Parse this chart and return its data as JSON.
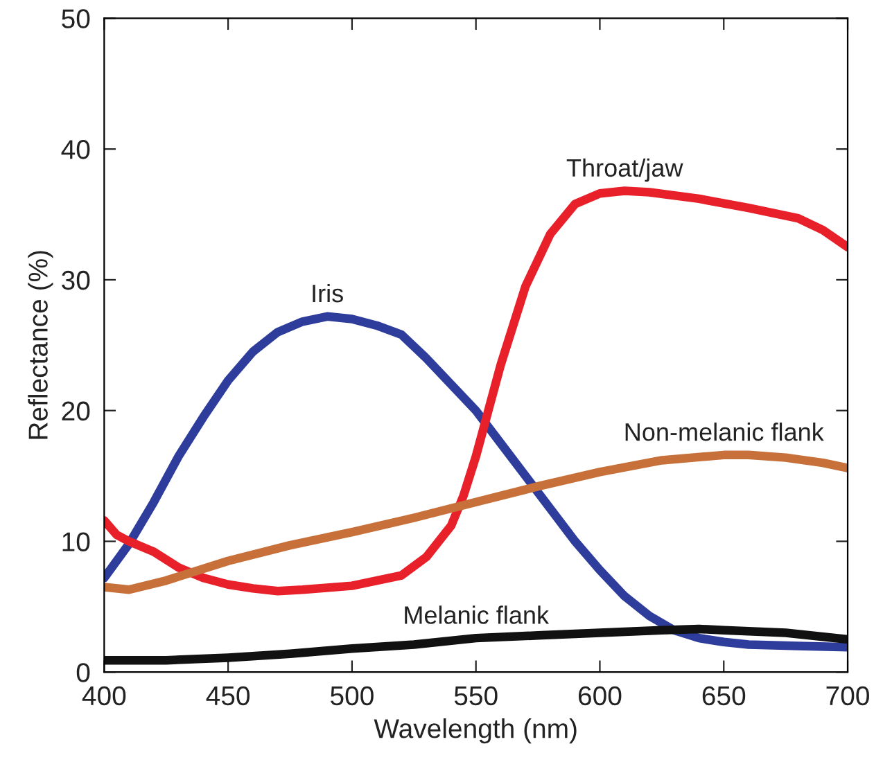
{
  "chart_data": {
    "type": "line",
    "xlabel": "Wavelength (nm)",
    "ylabel": "Reflectance (%)",
    "xlim": [
      400,
      700
    ],
    "ylim": [
      0,
      50
    ],
    "xticks": [
      400,
      450,
      500,
      550,
      600,
      650,
      700
    ],
    "yticks": [
      0,
      10,
      20,
      30,
      40,
      50
    ],
    "grid": false,
    "legend": false,
    "marker": "none",
    "line_style": "solid",
    "series": [
      {
        "name": "Iris",
        "color": "#2e3d9c",
        "x": [
          400,
          410,
          420,
          430,
          440,
          450,
          460,
          470,
          480,
          490,
          500,
          510,
          520,
          530,
          540,
          550,
          560,
          570,
          580,
          590,
          600,
          610,
          620,
          630,
          640,
          650,
          660,
          680,
          700
        ],
        "values": [
          7.2,
          9.8,
          13,
          16.5,
          19.5,
          22.3,
          24.5,
          26,
          26.8,
          27.2,
          27,
          26.5,
          25.8,
          24,
          22,
          20,
          17.5,
          15,
          12.5,
          10,
          7.8,
          5.8,
          4.3,
          3.2,
          2.6,
          2.3,
          2.1,
          2,
          1.9
        ]
      },
      {
        "name": "Throat/jaw",
        "color": "#e8202a",
        "x": [
          400,
          405,
          410,
          420,
          430,
          440,
          450,
          460,
          470,
          480,
          500,
          520,
          530,
          540,
          545,
          550,
          555,
          560,
          570,
          580,
          590,
          600,
          610,
          620,
          640,
          660,
          680,
          690,
          700
        ],
        "values": [
          11.6,
          10.5,
          10,
          9.2,
          8,
          7.2,
          6.7,
          6.4,
          6.2,
          6.3,
          6.6,
          7.4,
          8.8,
          11.2,
          13.5,
          16.5,
          20,
          23.5,
          29.5,
          33.5,
          35.8,
          36.6,
          36.8,
          36.7,
          36.2,
          35.5,
          34.7,
          33.8,
          32.5
        ]
      },
      {
        "name": "Non-melanic flank",
        "color": "#c8703a",
        "x": [
          400,
          410,
          425,
          450,
          475,
          500,
          525,
          550,
          575,
          600,
          625,
          650,
          660,
          675,
          690,
          700
        ],
        "values": [
          6.5,
          6.3,
          7,
          8.5,
          9.7,
          10.7,
          11.8,
          13,
          14.2,
          15.3,
          16.2,
          16.6,
          16.6,
          16.4,
          16,
          15.6
        ]
      },
      {
        "name": "Melanic flank",
        "color": "#111111",
        "x": [
          400,
          425,
          450,
          475,
          500,
          525,
          550,
          575,
          600,
          625,
          640,
          650,
          675,
          700
        ],
        "values": [
          0.9,
          0.9,
          1.1,
          1.4,
          1.8,
          2.1,
          2.6,
          2.8,
          3,
          3.2,
          3.3,
          3.2,
          3,
          2.5
        ]
      }
    ]
  }
}
